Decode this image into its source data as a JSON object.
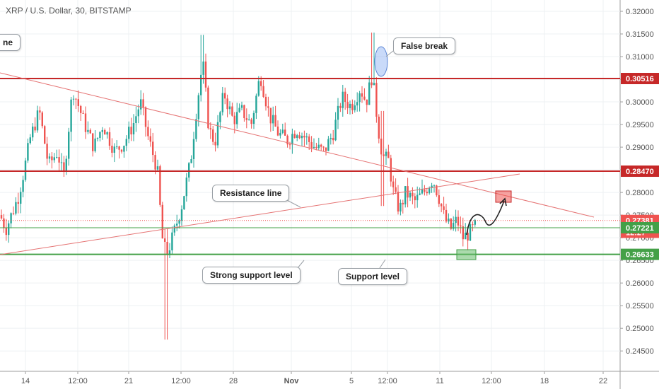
{
  "chart_title": "XRP / U.S. Dollar, 30, BITSTAMP",
  "colors": {
    "up": "#26a69a",
    "down": "#ef5350",
    "resistance": "#c62828",
    "support": "#43a047",
    "trend": "#e57373",
    "axis_text": "#555555",
    "current_price_bg": "#ef5350"
  },
  "chart_data": {
    "type": "candlestick",
    "title": "XRP / U.S. Dollar, 30, BITSTAMP",
    "ylim": [
      0.2405,
      0.3225
    ],
    "y_ticks": [
      "0.32000",
      "0.31500",
      "0.31000",
      "0.30500",
      "0.30000",
      "0.29500",
      "0.29000",
      "0.28500",
      "0.28000",
      "0.27500",
      "0.27000",
      "0.26500",
      "0.26000",
      "0.25500",
      "0.25000",
      "0.24500"
    ],
    "x_ticks": [
      "14",
      "12:00",
      "21",
      "12:00",
      "28",
      "Nov",
      "5",
      "12:00",
      "11",
      "12:00",
      "18",
      "22"
    ],
    "price_labels": [
      {
        "label": "0.30516",
        "value": 0.30516,
        "style": "resistance"
      },
      {
        "label": "0.28470",
        "value": 0.2847,
        "style": "resistance"
      },
      {
        "label": "0.27381",
        "value": 0.27381,
        "style": "current"
      },
      {
        "label": "12:27",
        "value": 0.2712,
        "style": "current"
      },
      {
        "label": "0.27221",
        "value": 0.27221,
        "style": "support"
      },
      {
        "label": "0.26633",
        "value": 0.26633,
        "style": "support"
      }
    ],
    "horizontal_levels": [
      {
        "value": 0.30516,
        "style": "resistance"
      },
      {
        "value": 0.2847,
        "style": "resistance"
      },
      {
        "value": 0.27221,
        "style": "support"
      },
      {
        "value": 0.26633,
        "style": "support"
      }
    ],
    "current_price": 0.27381,
    "annotations": [
      {
        "text": "False break"
      },
      {
        "text": "Resistance line"
      },
      {
        "text": "Strong support level"
      },
      {
        "text": "Support level"
      },
      {
        "text": "ne"
      }
    ],
    "price_path": [
      [
        0,
        0.275
      ],
      [
        0.01,
        0.272
      ],
      [
        0.03,
        0.279
      ],
      [
        0.04,
        0.285
      ],
      [
        0.05,
        0.292
      ],
      [
        0.065,
        0.298
      ],
      [
        0.08,
        0.286
      ],
      [
        0.095,
        0.289
      ],
      [
        0.105,
        0.283
      ],
      [
        0.12,
        0.303
      ],
      [
        0.14,
        0.295
      ],
      [
        0.155,
        0.29
      ],
      [
        0.17,
        0.295
      ],
      [
        0.19,
        0.289
      ],
      [
        0.205,
        0.291
      ],
      [
        0.22,
        0.295
      ],
      [
        0.232,
        0.3
      ],
      [
        0.245,
        0.292
      ],
      [
        0.26,
        0.285
      ],
      [
        0.268,
        0.27
      ],
      [
        0.275,
        0.266
      ],
      [
        0.285,
        0.27
      ],
      [
        0.3,
        0.277
      ],
      [
        0.315,
        0.287
      ],
      [
        0.325,
        0.299
      ],
      [
        0.335,
        0.309
      ],
      [
        0.345,
        0.294
      ],
      [
        0.355,
        0.291
      ],
      [
        0.37,
        0.302
      ],
      [
        0.385,
        0.296
      ],
      [
        0.4,
        0.298
      ],
      [
        0.415,
        0.295
      ],
      [
        0.43,
        0.306
      ],
      [
        0.445,
        0.297
      ],
      [
        0.46,
        0.293
      ],
      [
        0.475,
        0.2915
      ],
      [
        0.49,
        0.294
      ],
      [
        0.505,
        0.292
      ],
      [
        0.52,
        0.29
      ],
      [
        0.535,
        0.289
      ],
      [
        0.55,
        0.293
      ],
      [
        0.565,
        0.301
      ],
      [
        0.58,
        0.299
      ],
      [
        0.595,
        0.303
      ],
      [
        0.605,
        0.3
      ],
      [
        0.615,
        0.306
      ],
      [
        0.625,
        0.294
      ],
      [
        0.632,
        0.288
      ],
      [
        0.642,
        0.287
      ],
      [
        0.65,
        0.28
      ],
      [
        0.66,
        0.276
      ],
      [
        0.67,
        0.28
      ],
      [
        0.685,
        0.278
      ],
      [
        0.7,
        0.28
      ],
      [
        0.715,
        0.283
      ],
      [
        0.725,
        0.279
      ],
      [
        0.735,
        0.274
      ],
      [
        0.745,
        0.272
      ],
      [
        0.755,
        0.274
      ],
      [
        0.765,
        0.27
      ],
      [
        0.775,
        0.271
      ],
      [
        0.785,
        0.2725
      ]
    ],
    "wick_extremes": [
      {
        "t": 0.275,
        "high": 0.272,
        "low": 0.2475
      },
      {
        "t": 0.335,
        "high": 0.3148,
        "low": 0.304
      },
      {
        "t": 0.615,
        "high": 0.3153,
        "low": 0.304
      },
      {
        "t": 0.632,
        "high": 0.298,
        "low": 0.277
      }
    ]
  }
}
